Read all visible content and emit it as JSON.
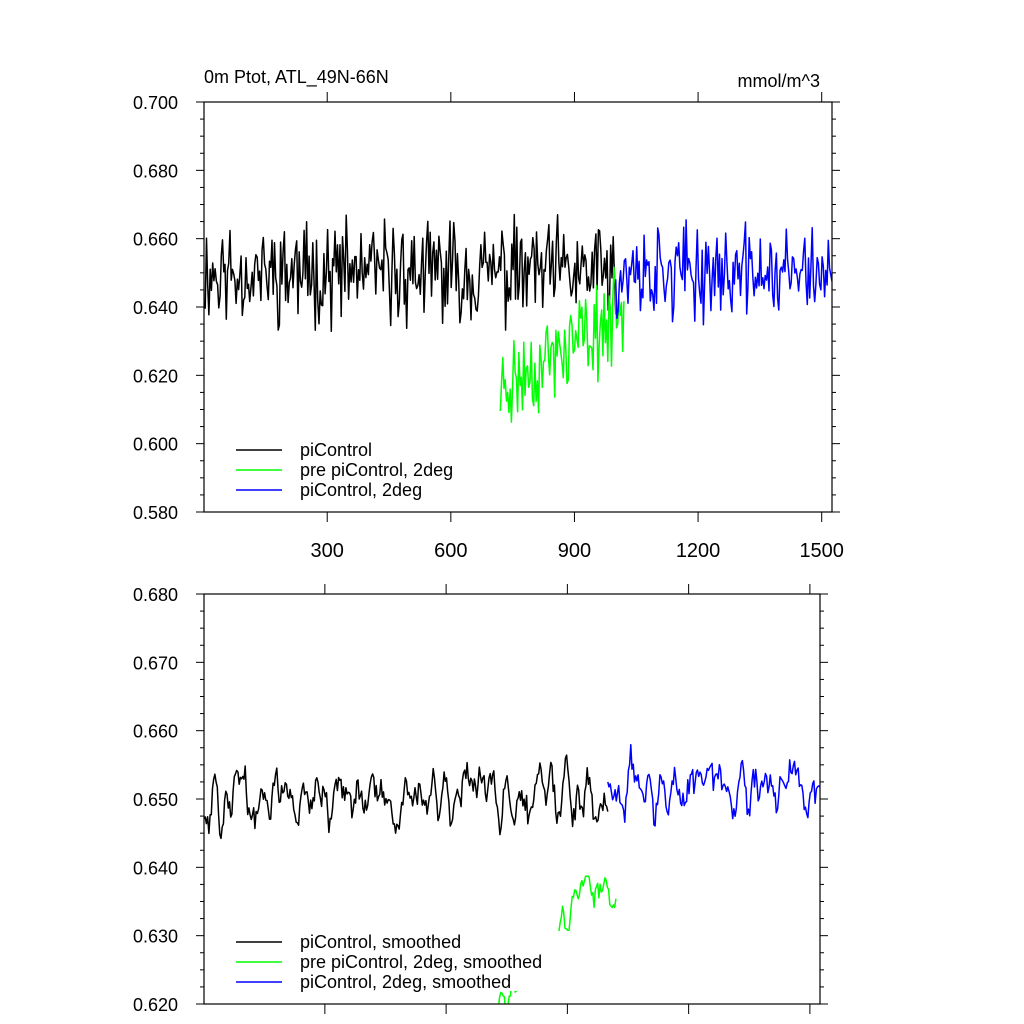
{
  "figure": {
    "title": "0m Ptot, ATL_49N-66N",
    "units": "mmol/m^3"
  },
  "chart_data": [
    {
      "type": "line",
      "title": "0m Ptot, ATL_49N-66N",
      "units_label": "mmol/m^3",
      "xlabel": "",
      "ylabel": "",
      "xlim": [
        1,
        1525
      ],
      "ylim": [
        0.58,
        0.7
      ],
      "xticks": [
        300,
        600,
        900,
        1200,
        1500
      ],
      "xtick_labels": [
        "300",
        "600",
        "900",
        "1200",
        "1500"
      ],
      "yticks": [
        0.58,
        0.6,
        0.62,
        0.64,
        0.66,
        0.68,
        0.7
      ],
      "ytick_labels": [
        "0.580",
        "0.600",
        "0.620",
        "0.640",
        "0.660",
        "0.680",
        "0.700"
      ],
      "legend_position": "bottom-left",
      "series": [
        {
          "name": "piControl",
          "color": "#000000",
          "x_range": [
            1,
            1000
          ],
          "mean": 0.65,
          "noise_amp": 0.012,
          "trend_end": 0.0,
          "smooth": 0,
          "seed": 11
        },
        {
          "name": "pre piControl, 2deg",
          "color": "#00ff00",
          "x_range": [
            720,
            1020
          ],
          "mean": 0.627,
          "noise_amp": 0.011,
          "trend_end": 0.022,
          "smooth": 0,
          "seed": 23
        },
        {
          "name": "piControl, 2deg",
          "color": "#0000ff",
          "x_range": [
            1000,
            1525
          ],
          "mean": 0.65,
          "noise_amp": 0.011,
          "trend_end": 0.0,
          "smooth": 0,
          "seed": 37
        }
      ]
    },
    {
      "type": "line",
      "title": "",
      "xlabel": "",
      "ylabel": "",
      "xlim": [
        1,
        1525
      ],
      "ylim": [
        0.62,
        0.68
      ],
      "xticks": [
        300,
        600,
        900,
        1200,
        1500
      ],
      "xtick_labels": [],
      "yticks": [
        0.62,
        0.63,
        0.64,
        0.65,
        0.66,
        0.67,
        0.68
      ],
      "ytick_labels": [
        "0.620",
        "0.630",
        "0.640",
        "0.650",
        "0.660",
        "0.670",
        "0.680"
      ],
      "legend_position": "bottom-left",
      "series": [
        {
          "name": "piControl, smoothed",
          "color": "#000000",
          "x_range": [
            1,
            1000
          ],
          "mean": 0.65,
          "noise_amp": 0.01,
          "trend_end": 0.0,
          "smooth": 2,
          "seed": 11
        },
        {
          "name": "pre piControl, 2deg, smoothed",
          "color": "#00ff00",
          "x_range": [
            720,
            1020
          ],
          "mean": 0.63,
          "noise_amp": 0.007,
          "trend_end": 0.02,
          "smooth": 2,
          "seed": 23
        },
        {
          "name": "piControl, 2deg, smoothed",
          "color": "#0000ff",
          "x_range": [
            1000,
            1525
          ],
          "mean": 0.651,
          "noise_amp": 0.009,
          "trend_end": 0.0,
          "smooth": 2,
          "seed": 37
        }
      ]
    }
  ]
}
